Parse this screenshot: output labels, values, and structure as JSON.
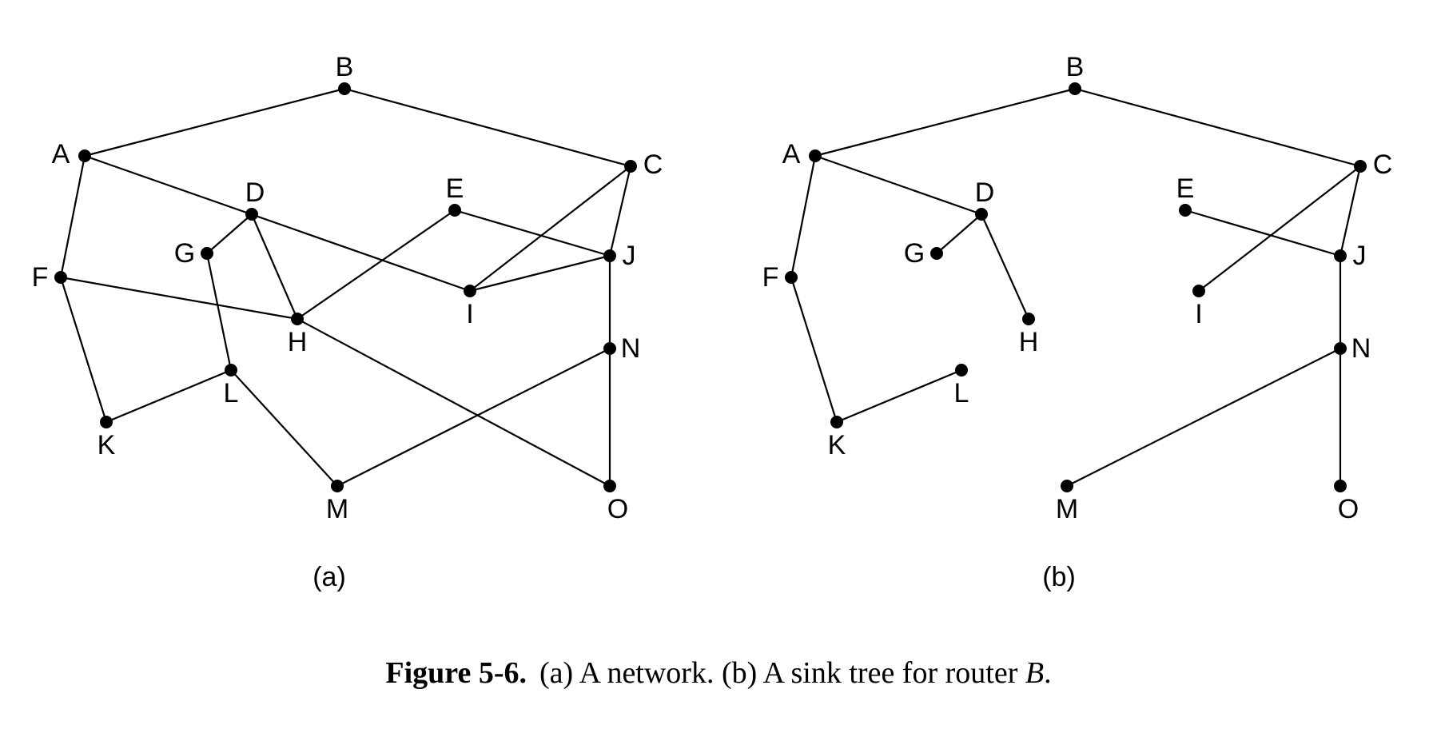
{
  "panels": [
    {
      "id": "a",
      "label": "(a)",
      "nodes": [
        "A",
        "B",
        "C",
        "D",
        "E",
        "F",
        "G",
        "H",
        "I",
        "J",
        "K",
        "L",
        "M",
        "N",
        "O"
      ],
      "edges": [
        [
          "B",
          "A"
        ],
        [
          "B",
          "C"
        ],
        [
          "A",
          "F"
        ],
        [
          "A",
          "I"
        ],
        [
          "F",
          "K"
        ],
        [
          "F",
          "H"
        ],
        [
          "K",
          "L"
        ],
        [
          "L",
          "M"
        ],
        [
          "L",
          "G"
        ],
        [
          "G",
          "D"
        ],
        [
          "D",
          "H"
        ],
        [
          "H",
          "E"
        ],
        [
          "H",
          "O"
        ],
        [
          "E",
          "J"
        ],
        [
          "C",
          "I"
        ],
        [
          "C",
          "J"
        ],
        [
          "I",
          "J"
        ],
        [
          "J",
          "N"
        ],
        [
          "N",
          "O"
        ],
        [
          "N",
          "M"
        ]
      ]
    },
    {
      "id": "b",
      "label": "(b)",
      "nodes": [
        "A",
        "B",
        "C",
        "D",
        "E",
        "F",
        "G",
        "H",
        "I",
        "J",
        "K",
        "L",
        "M",
        "N",
        "O"
      ],
      "edges": [
        [
          "B",
          "A"
        ],
        [
          "B",
          "C"
        ],
        [
          "A",
          "F"
        ],
        [
          "A",
          "D"
        ],
        [
          "D",
          "G"
        ],
        [
          "D",
          "H"
        ],
        [
          "F",
          "K"
        ],
        [
          "K",
          "L"
        ],
        [
          "C",
          "I"
        ],
        [
          "C",
          "J"
        ],
        [
          "E",
          "J"
        ],
        [
          "J",
          "N"
        ],
        [
          "N",
          "M"
        ],
        [
          "N",
          "O"
        ]
      ]
    }
  ],
  "caption": {
    "number": "Figure 5-6.",
    "text": "(a) A network. (b) A sink tree for router ",
    "router": "B",
    "end": "."
  }
}
